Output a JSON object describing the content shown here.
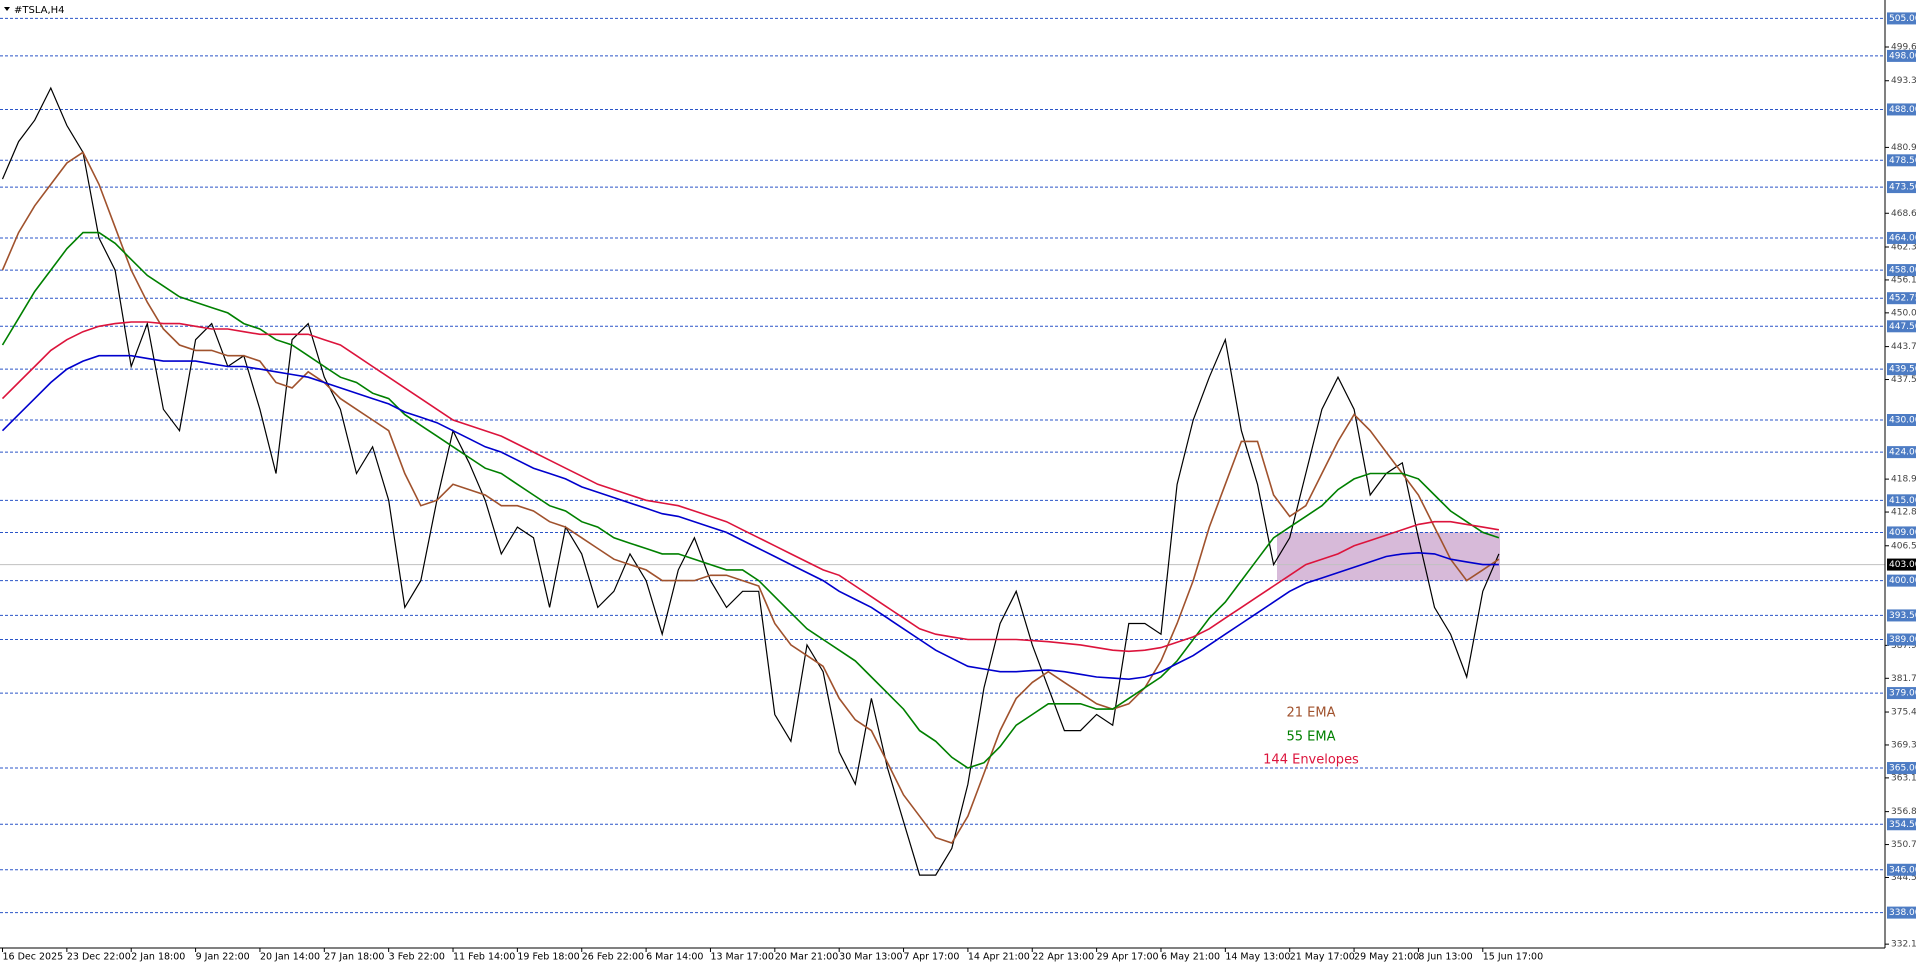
{
  "chart_data": {
    "type": "line",
    "title": "#TSLA,H4",
    "categories": [
      "16 Dec 2025",
      null,
      null,
      null,
      "23 Dec 22:00",
      null,
      null,
      null,
      "2 Jan 18:00",
      null,
      null,
      null,
      "9 Jan 22:00",
      null,
      null,
      null,
      "20 Jan 14:00",
      null,
      null,
      null,
      "27 Jan 18:00",
      null,
      null,
      null,
      "3 Feb 22:00",
      null,
      null,
      null,
      "11 Feb 14:00",
      null,
      null,
      null,
      "19 Feb 18:00",
      null,
      null,
      null,
      "26 Feb 22:00",
      null,
      null,
      null,
      "6 Mar 14:00",
      null,
      null,
      null,
      "13 Mar 17:00",
      null,
      null,
      null,
      "20 Mar 21:00",
      null,
      null,
      null,
      "30 Mar 13:00",
      null,
      null,
      null,
      "7 Apr 17:00",
      null,
      null,
      null,
      "14 Apr 21:00",
      null,
      null,
      null,
      "22 Apr 13:00",
      null,
      null,
      null,
      "29 Apr 17:00",
      null,
      null,
      null,
      "6 May 21:00",
      null,
      null,
      null,
      "14 May 13:00",
      null,
      null,
      null,
      "21 May 17:00",
      null,
      null,
      null,
      "29 May 21:00",
      null,
      null,
      null,
      "8 Jun 13:00",
      null,
      null,
      null,
      "15 Jun 17:00",
      null
    ],
    "series": [
      {
        "color": "#000000",
        "values": [
          475,
          482,
          486,
          492,
          485,
          480,
          464,
          458,
          440,
          448,
          432,
          428,
          445,
          448,
          440,
          442,
          432,
          420,
          445,
          448,
          438,
          432,
          420,
          425,
          415,
          395,
          400,
          415,
          428,
          422,
          415,
          405,
          410,
          408,
          395,
          410,
          405,
          395,
          398,
          405,
          400,
          390,
          402,
          408,
          400,
          395,
          398,
          398,
          375,
          370,
          388,
          383,
          368,
          362,
          378,
          365,
          355,
          345,
          345,
          350,
          362,
          380,
          392,
          398,
          388,
          380,
          372,
          372,
          375,
          373,
          392,
          392,
          390,
          418,
          430,
          438,
          445,
          428,
          418,
          403,
          408,
          420,
          432,
          438,
          432,
          416,
          420,
          422,
          408,
          395,
          390,
          382,
          398,
          405
        ]
      },
      {
        "name": "21 EMA",
        "color": "#a0522d",
        "values": [
          458,
          465,
          470,
          474,
          478,
          480,
          474,
          466,
          458,
          452,
          447,
          444,
          443,
          443,
          442,
          442,
          441,
          437,
          436,
          439,
          437,
          434,
          432,
          430,
          428,
          420,
          414,
          415,
          418,
          417,
          416,
          414,
          414,
          413,
          411,
          410,
          408,
          406,
          404,
          403,
          402,
          400,
          400,
          400,
          401,
          401,
          400,
          399,
          392,
          388,
          386,
          384,
          378,
          374,
          372,
          366,
          360,
          356,
          352,
          351,
          356,
          364,
          372,
          378,
          381,
          383,
          381,
          379,
          377,
          376,
          377,
          380,
          385,
          392,
          400,
          410,
          418,
          426,
          426,
          416,
          412,
          414,
          420,
          426,
          431,
          428,
          424,
          420,
          416,
          410,
          404,
          400,
          402,
          404
        ]
      },
      {
        "name": "55 EMA",
        "color": "#008000",
        "values": [
          444,
          449,
          454,
          458,
          462,
          465,
          465,
          463,
          460,
          457,
          455,
          453,
          452,
          451,
          450,
          448,
          447,
          445,
          444,
          442,
          440,
          438,
          437,
          435,
          434,
          431,
          429,
          427,
          425,
          423,
          421,
          420,
          418,
          416,
          414,
          413,
          411,
          410,
          408,
          407,
          406,
          405,
          405,
          404,
          403,
          402,
          402,
          400,
          397,
          394,
          391,
          389,
          387,
          385,
          382,
          379,
          376,
          372,
          370,
          367,
          365,
          366,
          369,
          373,
          375,
          377,
          377,
          377,
          376,
          376,
          378,
          380,
          382,
          385,
          389,
          393,
          396,
          400,
          404,
          408,
          410,
          412,
          414,
          417,
          419,
          420,
          420,
          420,
          419,
          416,
          413,
          411,
          409,
          408
        ]
      },
      {
        "name": "144 Envelopes",
        "color": "#dc143c",
        "values": [
          434,
          437,
          440,
          443,
          445,
          446.5,
          447.5,
          448,
          448.3,
          448.3,
          448,
          448,
          447.5,
          447,
          447,
          446.5,
          446,
          446,
          446,
          446,
          445,
          444,
          442,
          440,
          438,
          436,
          434,
          432,
          430,
          429,
          428,
          427,
          425.5,
          424,
          422.5,
          421,
          419.5,
          418,
          417,
          416,
          415,
          414.5,
          414,
          413,
          412,
          411,
          409.5,
          408,
          406.5,
          405,
          403.5,
          402,
          401,
          399,
          397,
          395,
          393,
          391,
          390,
          389.5,
          389,
          389,
          389,
          389,
          388.8,
          388.6,
          388.3,
          388,
          387.5,
          387,
          386.8,
          387,
          387.5,
          388.5,
          389.5,
          391,
          393,
          395,
          397,
          399,
          401,
          403,
          404,
          405,
          406.5,
          407.5,
          408.5,
          409.5,
          410.5,
          411,
          411,
          410.5,
          410,
          409.5
        ]
      },
      {
        "color": "#0000cd",
        "values": [
          428,
          431,
          434,
          437,
          439.5,
          441,
          442,
          442,
          442,
          441.5,
          441,
          441,
          441,
          440.5,
          440,
          440,
          439.5,
          439,
          438.5,
          438,
          437,
          436,
          435,
          434,
          433,
          431.5,
          430.5,
          429.5,
          428,
          426.5,
          425,
          424,
          422.5,
          421,
          420,
          419,
          417.5,
          416.5,
          415.5,
          414.5,
          413.5,
          412.5,
          412,
          411,
          410,
          409,
          407.5,
          406,
          404.5,
          403,
          401.5,
          400,
          398,
          396.5,
          395,
          393,
          391,
          389,
          387,
          385.5,
          384,
          383.5,
          383,
          383,
          383.2,
          383.3,
          383,
          382.5,
          382,
          381.8,
          381.6,
          382,
          383,
          384.5,
          386,
          388,
          390,
          392,
          394,
          396,
          398,
          399.5,
          400.5,
          401.5,
          402.5,
          403.5,
          404.5,
          405,
          405.2,
          405,
          404,
          403.5,
          403,
          403
        ]
      }
    ],
    "ylim": [
      331.39,
      508.44
    ],
    "yticks": [
      499.66,
      493.36,
      480.91,
      468.61,
      462.31,
      456.16,
      450.01,
      443.71,
      437.56,
      418.96,
      412.81,
      406.51,
      387.91,
      381.76,
      375.46,
      369.31,
      363.16,
      356.86,
      350.71,
      344.56,
      332.11
    ],
    "hlines": [
      {
        "value": 505,
        "label": "505.00"
      },
      {
        "value": 498,
        "label": "498.00"
      },
      {
        "value": 488,
        "label": "488.00"
      },
      {
        "value": 478.5,
        "label": "478.50"
      },
      {
        "value": 473.5,
        "label": "473.50"
      },
      {
        "value": 464,
        "label": "464.00"
      },
      {
        "value": 458,
        "label": "458.00"
      },
      {
        "value": 452.75,
        "label": "452.75"
      },
      {
        "value": 447.5,
        "label": "447.50"
      },
      {
        "value": 439.5,
        "label": "439.50"
      },
      {
        "value": 430,
        "label": "430.00"
      },
      {
        "value": 424,
        "label": "424.00"
      },
      {
        "value": 415,
        "label": "415.00"
      },
      {
        "value": 409,
        "label": "409.00"
      },
      {
        "value": 400,
        "label": "400.00"
      },
      {
        "value": 393.5,
        "label": "393.50"
      },
      {
        "value": 389,
        "label": "389.00"
      },
      {
        "value": 379,
        "label": "379.00"
      },
      {
        "value": 365,
        "label": "365.00"
      },
      {
        "value": 354.5,
        "label": "354.50"
      },
      {
        "value": 346,
        "label": "346.00"
      },
      {
        "value": 338,
        "label": "338.00"
      }
    ],
    "hline_color": "#2b55c8",
    "current_price": {
      "value": 403,
      "label": "403.00"
    },
    "zone": {
      "top": 409,
      "bottom": 400,
      "color": "#c9a3cc"
    }
  }
}
